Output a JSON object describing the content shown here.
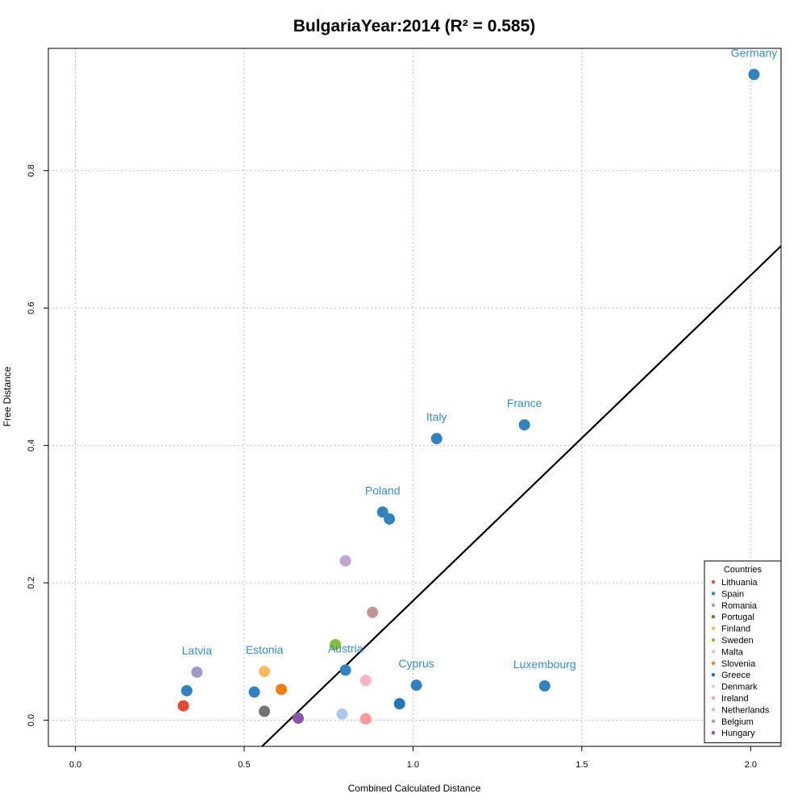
{
  "chart_data": {
    "type": "scatter",
    "title": "BulgariaYear:2014 (R² = 0.585)",
    "xlabel": "Combined Calculated Distance",
    "ylabel": "Free Distance",
    "xlim": [
      -0.08,
      2.09
    ],
    "ylim": [
      -0.038,
      0.978
    ],
    "xticks": [
      "0.0",
      "0.5",
      "1.0",
      "1.5",
      "2.0"
    ],
    "yticks": [
      "0.0",
      "0.2",
      "0.4",
      "0.6",
      "0.8"
    ],
    "grid": true,
    "regression_line": {
      "from": [
        0.0,
        -0.3
      ],
      "to": [
        2.1,
        0.695
      ]
    },
    "points": [
      {
        "x": 2.01,
        "y": 0.94,
        "color": "#3182bd",
        "label": "Germany"
      },
      {
        "x": 1.33,
        "y": 0.43,
        "color": "#3182bd",
        "label": "France"
      },
      {
        "x": 1.07,
        "y": 0.41,
        "color": "#3182bd",
        "label": "Italy"
      },
      {
        "x": 0.91,
        "y": 0.303,
        "color": "#3182bd",
        "label": "Poland"
      },
      {
        "x": 0.93,
        "y": 0.293,
        "color": "#3182bd",
        "label": ""
      },
      {
        "x": 0.8,
        "y": 0.073,
        "color": "#3182bd",
        "label": "Austria"
      },
      {
        "x": 1.01,
        "y": 0.051,
        "color": "#3182bd",
        "label": "Cyprus"
      },
      {
        "x": 1.39,
        "y": 0.05,
        "color": "#3182bd",
        "label": "Luxembourg"
      },
      {
        "x": 0.33,
        "y": 0.043,
        "color": "#3182bd",
        "label": ""
      },
      {
        "x": 0.53,
        "y": 0.041,
        "color": "#3182bd",
        "label": ""
      },
      {
        "x": 0.96,
        "y": 0.024,
        "color": "#1f78b4",
        "label": ""
      },
      {
        "x": 0.32,
        "y": 0.021,
        "color": "#e34a33",
        "label": ""
      },
      {
        "x": 0.36,
        "y": 0.07,
        "color": "#9e9ac8",
        "label": "Latvia"
      },
      {
        "x": 0.56,
        "y": 0.071,
        "color": "#fdbb63",
        "label": "Estonia"
      },
      {
        "x": 0.61,
        "y": 0.045,
        "color": "#f47d0d",
        "label": ""
      },
      {
        "x": 0.56,
        "y": 0.013,
        "color": "#737373",
        "label": ""
      },
      {
        "x": 0.66,
        "y": 0.003,
        "color": "#8c55ab",
        "label": ""
      },
      {
        "x": 0.8,
        "y": 0.232,
        "color": "#c2a5cf",
        "label": ""
      },
      {
        "x": 0.88,
        "y": 0.157,
        "color": "#bc968e",
        "label": ""
      },
      {
        "x": 0.77,
        "y": 0.11,
        "color": "#82bd3c",
        "label": ""
      },
      {
        "x": 0.86,
        "y": 0.058,
        "color": "#fbb4c0",
        "label": ""
      },
      {
        "x": 0.79,
        "y": 0.009,
        "color": "#aec7e8",
        "label": ""
      },
      {
        "x": 0.86,
        "y": 0.002,
        "color": "#fb9a99",
        "label": ""
      }
    ],
    "legend": {
      "title": "Countries",
      "placement": "bottom-right",
      "entries": [
        {
          "name": "Lithuania",
          "color": "#e34a33"
        },
        {
          "name": "Spain",
          "color": "#3182bd"
        },
        {
          "name": "Romania",
          "color": "#9e9ac8"
        },
        {
          "name": "Portugal",
          "color": "#8c6d31"
        },
        {
          "name": "Finland",
          "color": "#fdbb63"
        },
        {
          "name": "Sweden",
          "color": "#82bd3c"
        },
        {
          "name": "Malta",
          "color": "#fbb4c0"
        },
        {
          "name": "Slovenia",
          "color": "#f47d0d"
        },
        {
          "name": "Greece",
          "color": "#1f78b4"
        },
        {
          "name": "Denmark",
          "color": "#c6dbef"
        },
        {
          "name": "Ireland",
          "color": "#fb9a99"
        },
        {
          "name": "Netherlands",
          "color": "#aec7e8"
        },
        {
          "name": "Belgium",
          "color": "#bc968e"
        },
        {
          "name": "Hungary",
          "color": "#8c55ab"
        }
      ]
    }
  }
}
